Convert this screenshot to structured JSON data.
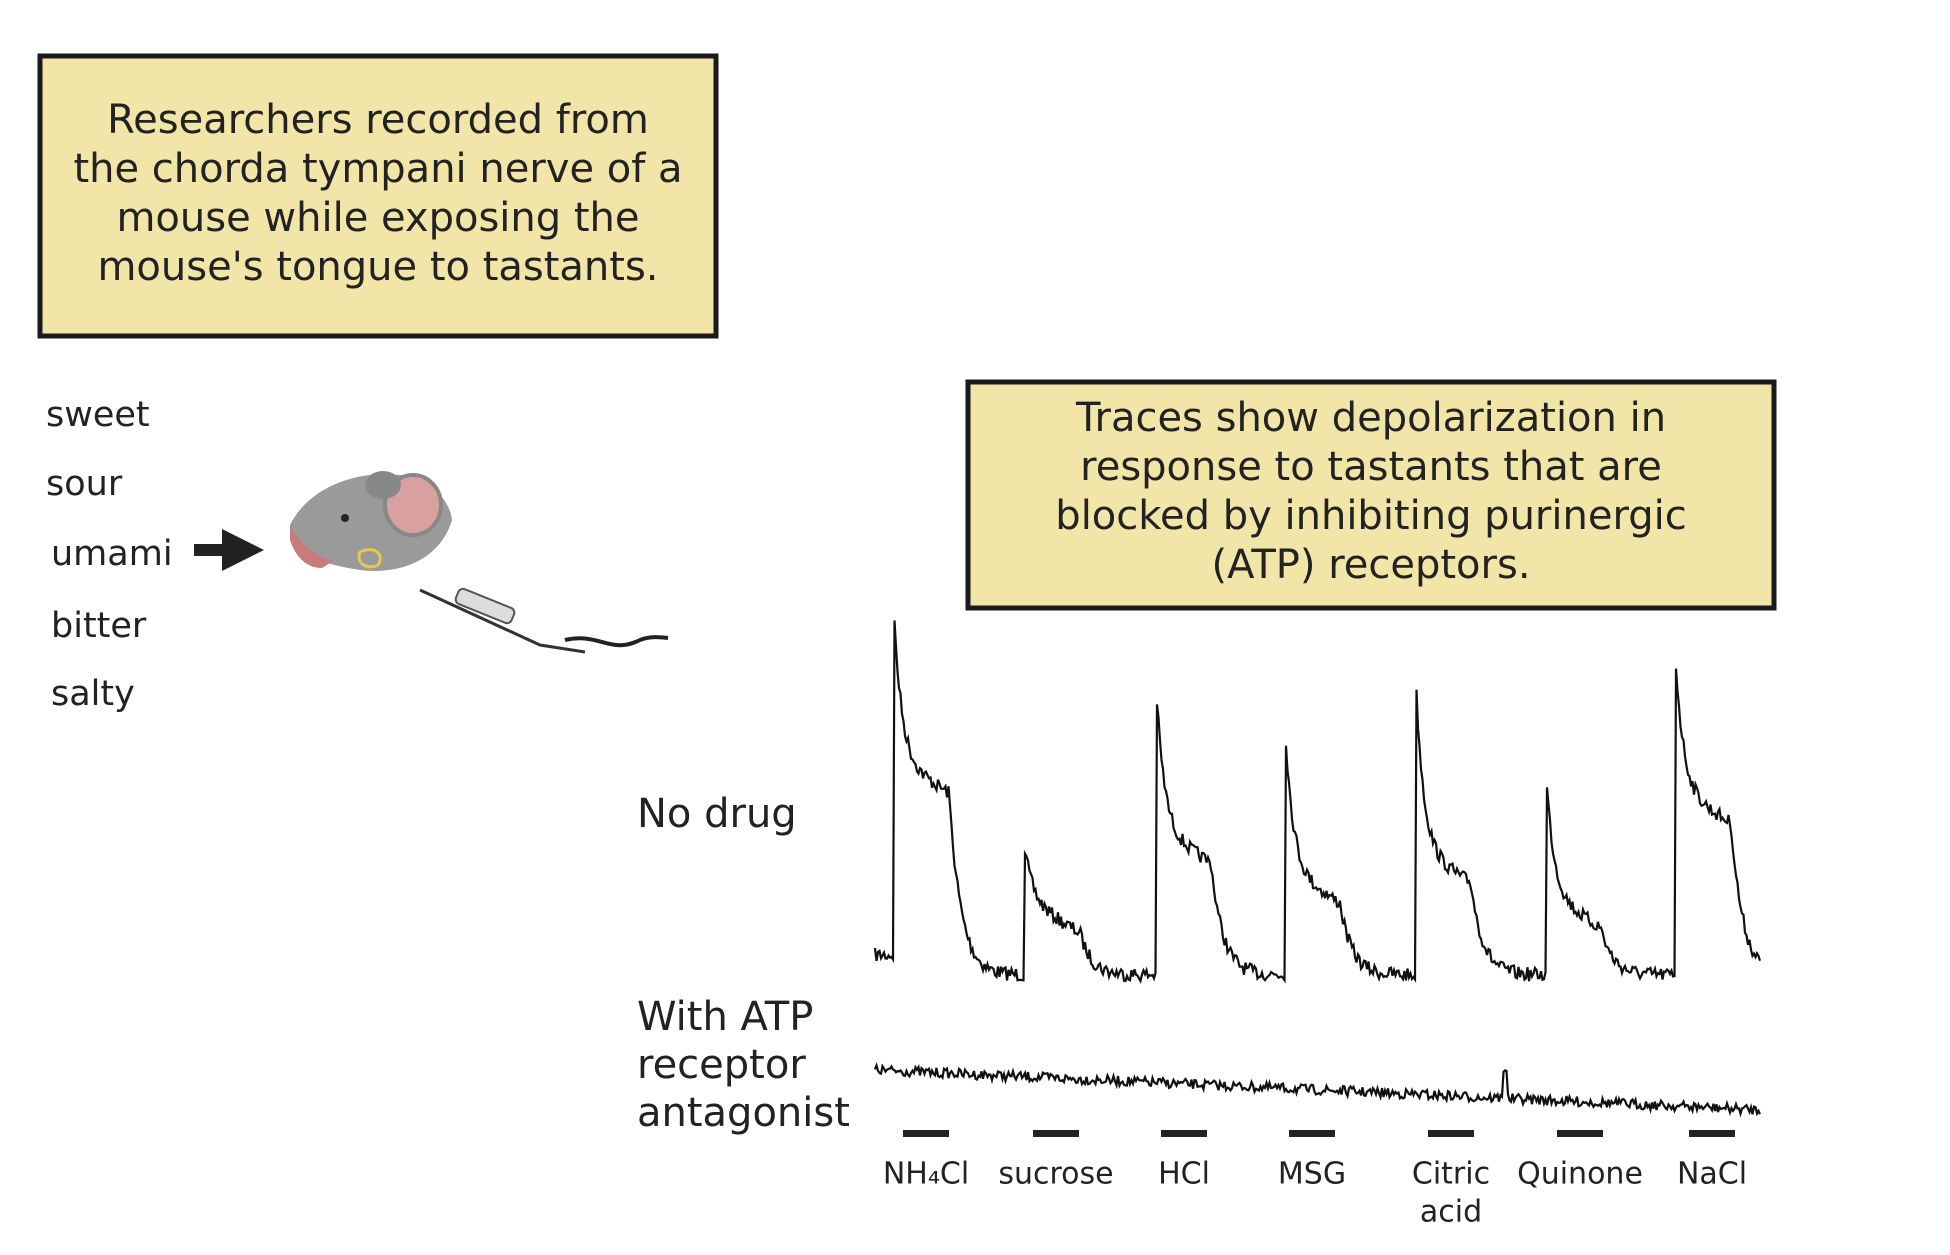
{
  "top_box": {
    "lines": [
      "Researchers recorded from",
      "the chorda tympani nerve of a",
      "mouse while exposing the",
      "mouse's tongue to tastants."
    ]
  },
  "tastes": [
    "sweet",
    "sour",
    "umami",
    "bitter",
    "salty"
  ],
  "results_box": {
    "lines": [
      "Traces show depolarization in",
      "response to tastants that are",
      "blocked by inhibiting purinergic",
      "(ATP) receptors."
    ]
  },
  "trace_labels": {
    "no_drug": "No drug",
    "antagonist": [
      "With ATP",
      "receptor",
      "antagonist"
    ]
  },
  "tastants": [
    [
      "NH₄Cl"
    ],
    [
      "sucrose"
    ],
    [
      "HCl"
    ],
    [
      "MSG"
    ],
    [
      "Citric",
      "acid"
    ],
    [
      "Quinone"
    ],
    [
      "NaCl"
    ]
  ]
}
